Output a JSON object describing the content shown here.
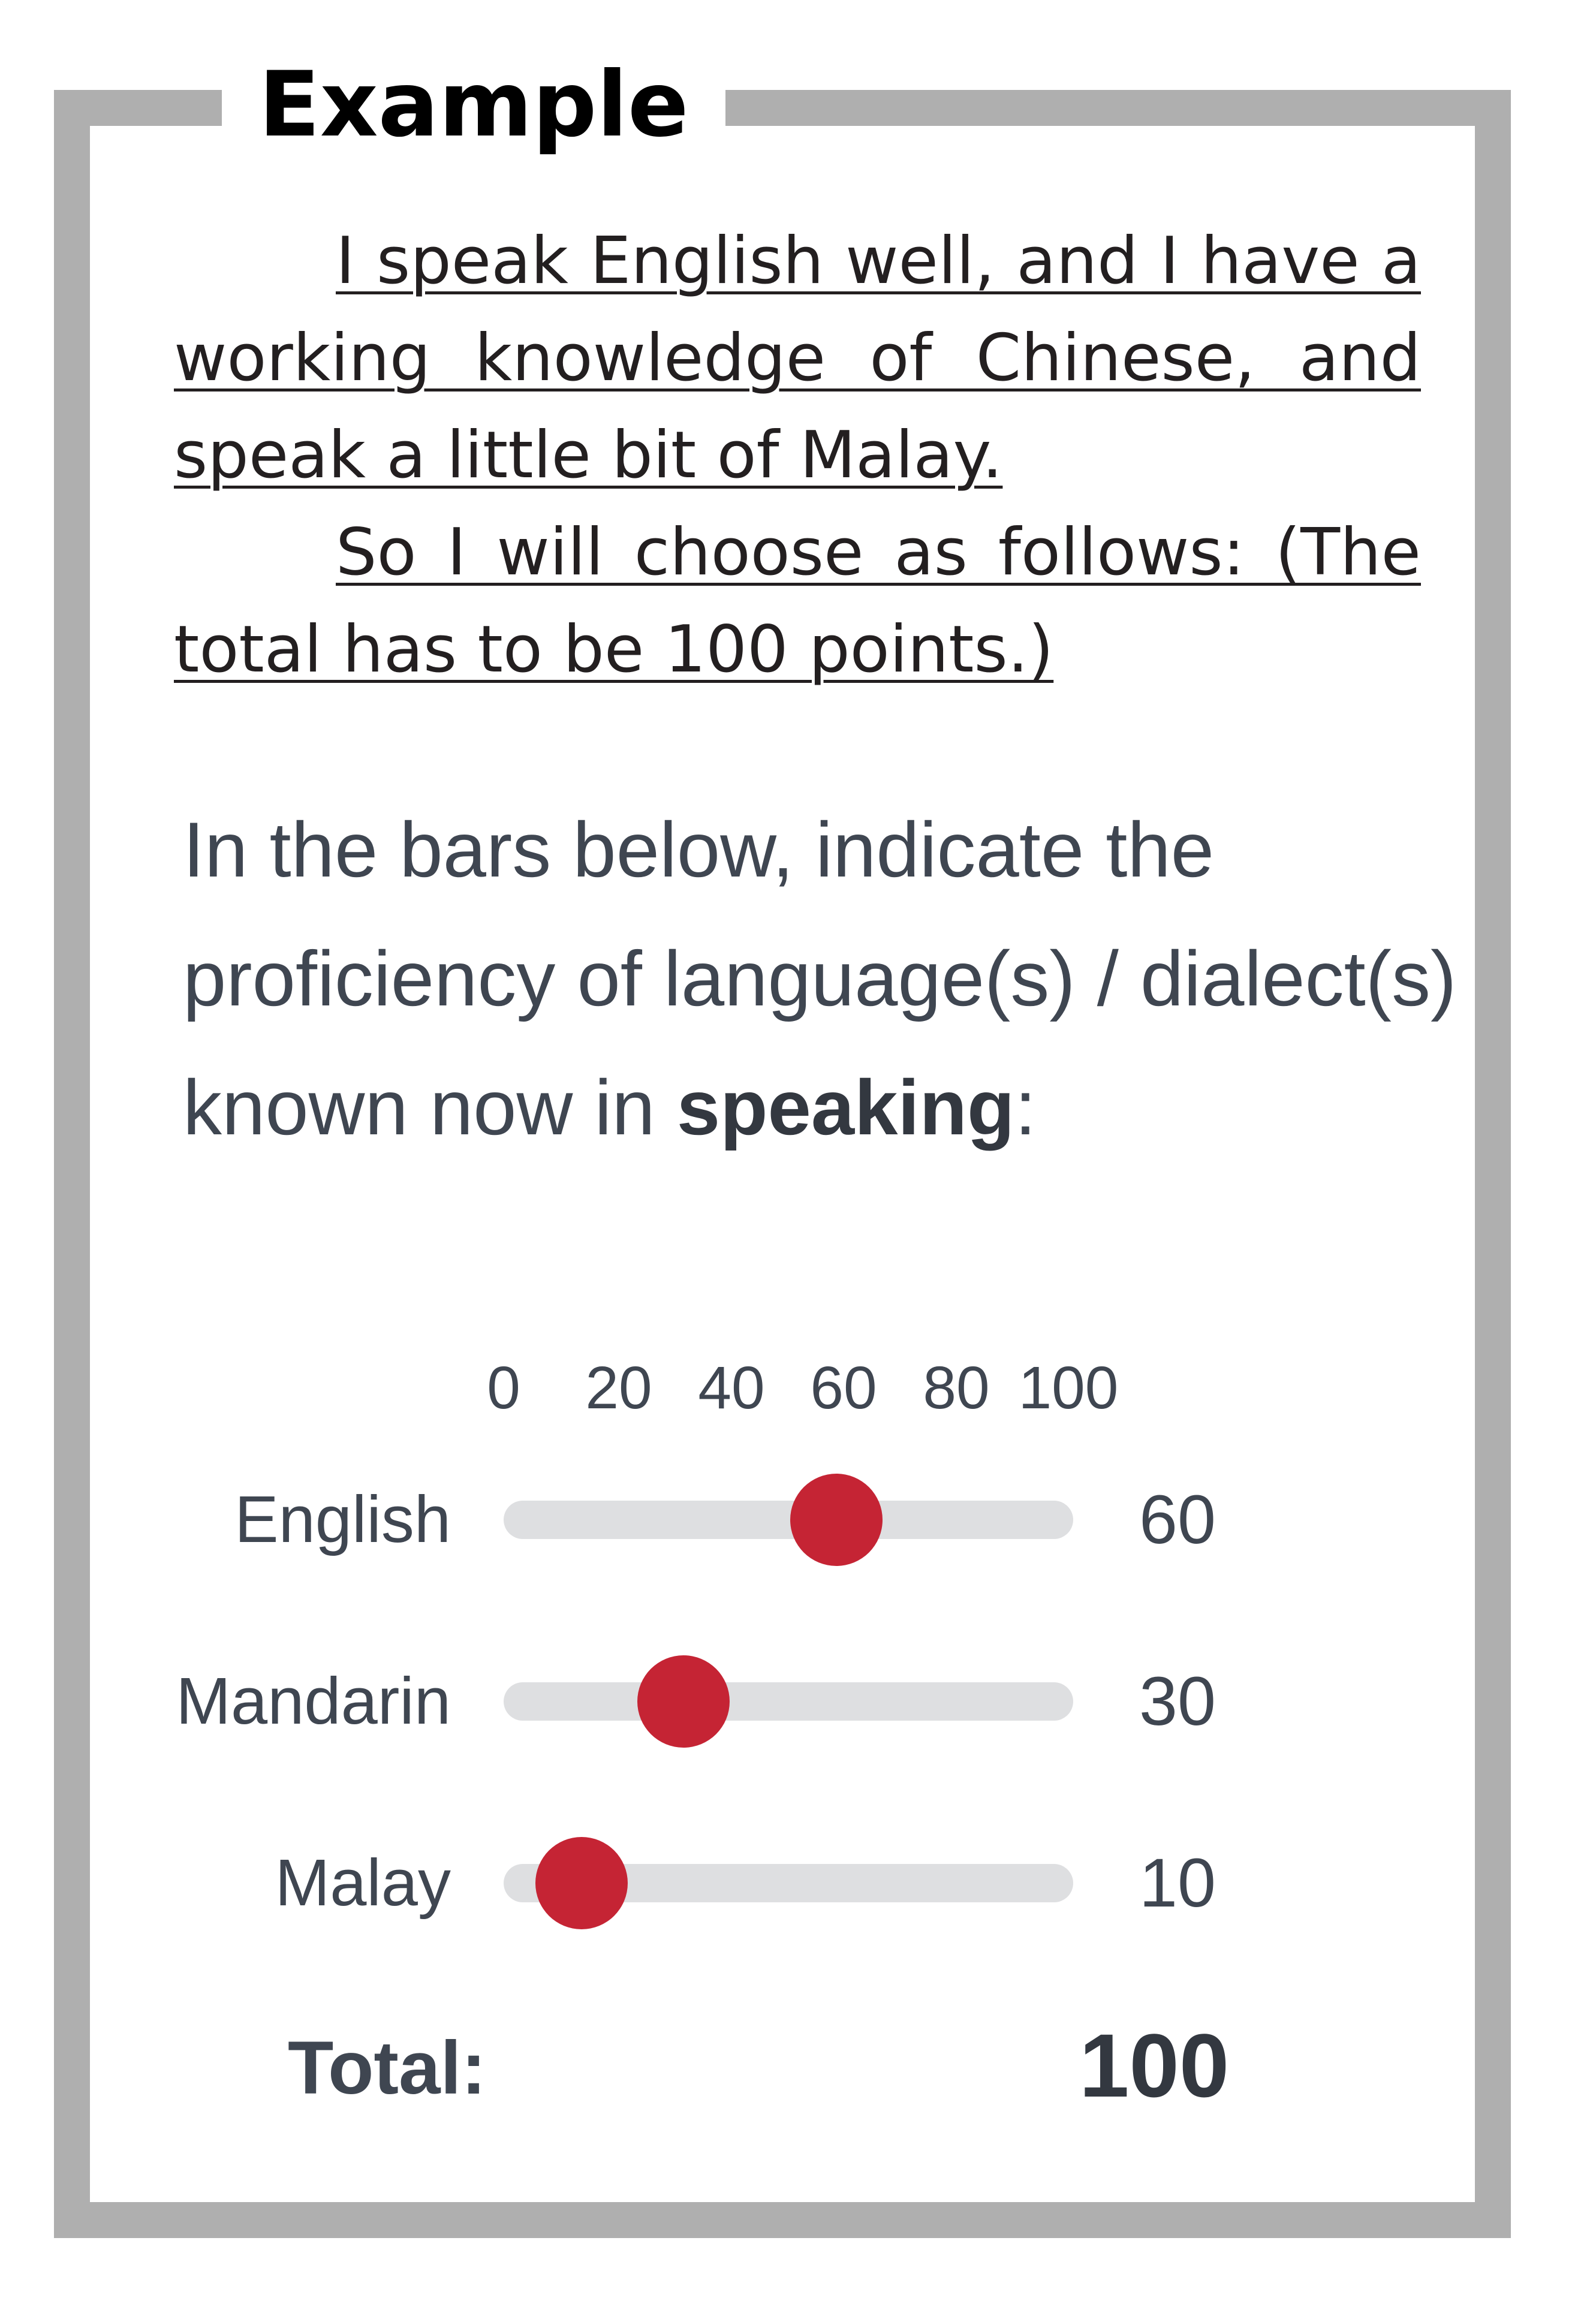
{
  "heading": "Example",
  "note": {
    "line1": "I speak English well, and I have a working knowledge of Chinese, and speak a little bit of Malay.",
    "line2": "So I will choose as follows: (The total has to be 100 points.)"
  },
  "question": {
    "prefix": "In the bars below, indicate the proficiency of language(s) / dialect(s) known now in ",
    "emphasis": "speaking",
    "suffix": ":"
  },
  "scale": {
    "min": 0,
    "max": 100,
    "ticks": [
      "0",
      "20",
      "40",
      "60",
      "80",
      "100"
    ]
  },
  "sliders": [
    {
      "label": "English",
      "value": 60,
      "value_text": "60"
    },
    {
      "label": "Mandarin",
      "value": 30,
      "value_text": "30"
    },
    {
      "label": "Malay",
      "value": 10,
      "value_text": "10"
    }
  ],
  "total": {
    "label": "Total:",
    "value": "100"
  },
  "colors": {
    "frame": "#afafaf",
    "track": "#dedfe1",
    "knob": "#c52434",
    "text": "#3f4651"
  }
}
